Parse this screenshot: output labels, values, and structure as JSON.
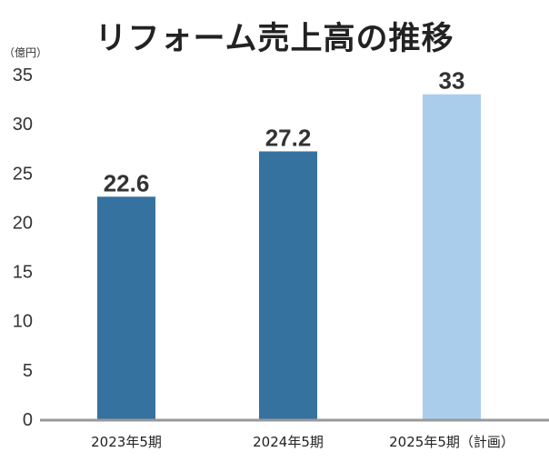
{
  "chart_data": {
    "type": "bar",
    "title": "リフォーム売上高の推移",
    "unit_label": "（億円）",
    "categories": [
      "2023年5期",
      "2024年5期",
      "2025年5期（計画）"
    ],
    "values": [
      22.6,
      27.2,
      33
    ],
    "value_labels": [
      "22.6",
      "27.2",
      "33"
    ],
    "ylim": [
      0,
      35
    ],
    "yticks": [
      0,
      5,
      10,
      15,
      20,
      25,
      30,
      35
    ],
    "ytick_labels": [
      "0",
      "5",
      "10",
      "15",
      "20",
      "25",
      "30",
      "35"
    ],
    "grid": false,
    "legend": "none",
    "colors": [
      "#3572a0",
      "#3572a0",
      "#aacdec"
    ],
    "axis_color": "#999999"
  }
}
